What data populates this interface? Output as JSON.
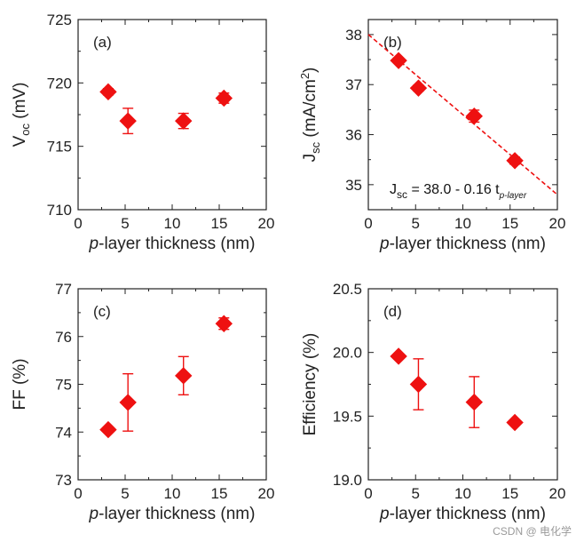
{
  "chart_data": [
    {
      "id": "a",
      "type": "scatter",
      "panel_label": "(a)",
      "ylabel_main": "V",
      "ylabel_sub": "oc",
      "ylabel_tail": " (mV)",
      "xlabel_italic": "p",
      "xlabel_rest": "-layer thickness (nm)",
      "xlim": [
        0,
        20
      ],
      "ylim": [
        710,
        725
      ],
      "xticks": [
        0,
        5,
        10,
        15,
        20
      ],
      "yticks": [
        710,
        715,
        720,
        725
      ],
      "x": [
        3.2,
        5.3,
        11.2,
        15.5
      ],
      "y": [
        719.3,
        717.0,
        717.0,
        718.8
      ],
      "yerr": [
        0.25,
        1.0,
        0.6,
        0.4
      ],
      "color": "#ee1111"
    },
    {
      "id": "b",
      "type": "scatter",
      "panel_label": "(b)",
      "ylabel_main": "J",
      "ylabel_sub": "sc",
      "ylabel_tail": " (mA/cm",
      "ylabel_sup": "2",
      "ylabel_end": ")",
      "xlabel_italic": "p",
      "xlabel_rest": "-layer thickness (nm)",
      "xlim": [
        0,
        20
      ],
      "ylim": [
        34.5,
        38.3
      ],
      "xticks": [
        0,
        5,
        10,
        15,
        20
      ],
      "yticks": [
        35,
        36,
        37,
        38
      ],
      "x": [
        3.2,
        5.3,
        11.2,
        15.5
      ],
      "y": [
        37.48,
        36.93,
        36.37,
        35.48
      ],
      "yerr": [
        0.05,
        0.06,
        0.12,
        0.07
      ],
      "fit": {
        "intercept": 38.0,
        "slope": -0.16,
        "x_range": [
          0,
          20
        ]
      },
      "equation": {
        "j": "J",
        "j_sub": "sc",
        "body": " = 38.0 - 0.16 t",
        "t_sub": "p-layer"
      },
      "color": "#ee1111"
    },
    {
      "id": "c",
      "type": "scatter",
      "panel_label": "(c)",
      "ylabel_main": "FF (%)",
      "xlabel_italic": "p",
      "xlabel_rest": "-layer thickness (nm)",
      "xlim": [
        0,
        20
      ],
      "ylim": [
        73,
        77
      ],
      "xticks": [
        0,
        5,
        10,
        15,
        20
      ],
      "yticks": [
        73,
        74,
        75,
        76,
        77
      ],
      "x": [
        3.2,
        5.3,
        11.2,
        15.5
      ],
      "y": [
        74.05,
        74.62,
        75.18,
        76.27
      ],
      "yerr": [
        0.05,
        0.6,
        0.4,
        0.12
      ],
      "color": "#ee1111"
    },
    {
      "id": "d",
      "type": "scatter",
      "panel_label": "(d)",
      "ylabel_main": "Efficiency (%)",
      "xlabel_italic": "p",
      "xlabel_rest": "-layer thickness (nm)",
      "xlim": [
        0,
        20
      ],
      "ylim": [
        19.0,
        20.5
      ],
      "xticks": [
        0,
        5,
        10,
        15,
        20
      ],
      "yticks": [
        19.0,
        19.5,
        20.0,
        20.5
      ],
      "ytick_decimals": 1,
      "x": [
        3.2,
        5.3,
        11.2,
        15.5
      ],
      "y": [
        19.97,
        19.75,
        19.61,
        19.45
      ],
      "yerr": [
        0.02,
        0.2,
        0.2,
        0.02
      ],
      "color": "#ee1111"
    }
  ],
  "watermark": "CSDN @ 电化学"
}
